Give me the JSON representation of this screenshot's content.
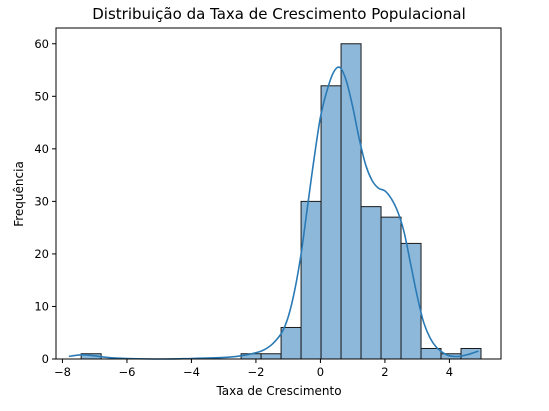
{
  "chart_data": {
    "type": "bar",
    "title": "Distribuição da Taxa de Crescimento Populacional",
    "xlabel": "Taxa de Crescimento",
    "ylabel": "Frequência",
    "xlim": [
      -8.2,
      5.6
    ],
    "ylim": [
      0,
      63
    ],
    "xticks": [
      -8,
      -6,
      -4,
      -2,
      0,
      2,
      4
    ],
    "yticks": [
      0,
      10,
      20,
      30,
      40,
      50,
      60
    ],
    "bin_width": 0.62,
    "bins": [
      {
        "x0": -7.42,
        "count": 1
      },
      {
        "x0": -2.46,
        "count": 1
      },
      {
        "x0": -1.84,
        "count": 1
      },
      {
        "x0": -1.22,
        "count": 6
      },
      {
        "x0": -0.6,
        "count": 30
      },
      {
        "x0": 0.02,
        "count": 52
      },
      {
        "x0": 0.64,
        "count": 60
      },
      {
        "x0": 1.26,
        "count": 29
      },
      {
        "x0": 1.88,
        "count": 27
      },
      {
        "x0": 2.5,
        "count": 22
      },
      {
        "x0": 3.12,
        "count": 2
      },
      {
        "x0": 3.74,
        "count": 1
      },
      {
        "x0": 4.36,
        "count": 2
      }
    ],
    "kde": {
      "x": [
        -7.8,
        -7.4,
        -7.0,
        -6.6,
        -6.0,
        -5.0,
        -4.0,
        -3.0,
        -2.6,
        -2.2,
        -1.8,
        -1.5,
        -1.2,
        -1.0,
        -0.8,
        -0.6,
        -0.4,
        -0.2,
        0.0,
        0.2,
        0.4,
        0.6,
        0.8,
        1.0,
        1.2,
        1.4,
        1.6,
        1.8,
        2.0,
        2.2,
        2.4,
        2.6,
        2.8,
        3.0,
        3.2,
        3.4,
        3.6,
        3.8,
        4.0,
        4.3,
        4.6,
        4.9
      ],
      "y": [
        0.5,
        0.8,
        0.6,
        0.3,
        0.1,
        0.0,
        0.1,
        0.3,
        0.5,
        0.9,
        1.6,
        2.8,
        5,
        8,
        13,
        20,
        29,
        38,
        46,
        51,
        54.5,
        55.5,
        53,
        48,
        42,
        37,
        34,
        32.5,
        32,
        30.5,
        28,
        24,
        18,
        12,
        7,
        4,
        2.2,
        1.2,
        0.6,
        0.5,
        0.9,
        1.5
      ]
    },
    "colors": {
      "bar_fill": "#8db8da",
      "bar_stroke": "#1a1a1a",
      "kde_line": "#2a7ab5"
    },
    "grid": false,
    "legend": "none"
  }
}
